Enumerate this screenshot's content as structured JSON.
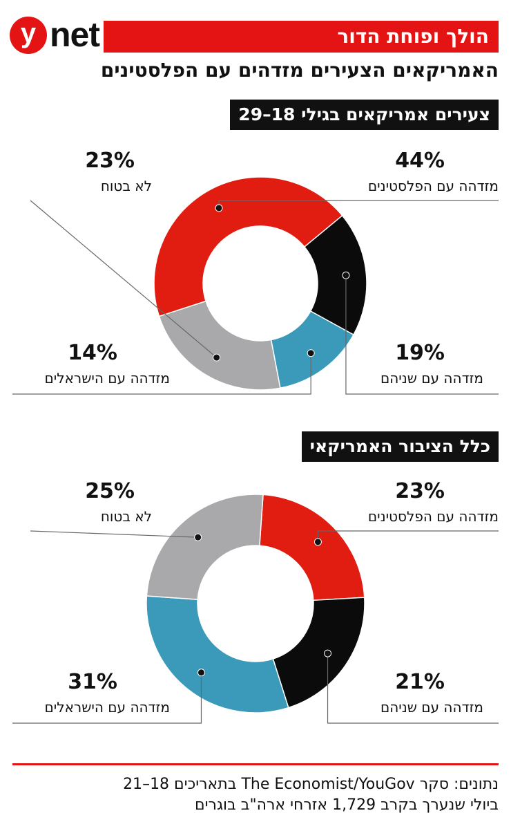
{
  "brand": {
    "logo_y": "y",
    "logo_word": "net"
  },
  "banner": {
    "title": "הולך ופוחת הדור"
  },
  "headline": "האמריקאים הצעירים מזדהים עם הפלסטינים",
  "sections": [
    {
      "label": "צעירים אמריקאים בגילי 18–29",
      "callouts": {
        "palestinians": {
          "pct": "44%",
          "text": "מזדהה עם הפלסטינים"
        },
        "both": {
          "pct": "19%",
          "text": "מזדהה עם שניהם"
        },
        "israelis": {
          "pct": "14%",
          "text": "מזדהה עם הישראלים"
        },
        "unsure": {
          "pct": "23%",
          "text": "לא בטוח"
        }
      }
    },
    {
      "label": "כלל הציבור האמריקאי",
      "callouts": {
        "palestinians": {
          "pct": "23%",
          "text": "מזדהה עם הפלסטינים"
        },
        "both": {
          "pct": "21%",
          "text": "מזדהה עם שניהם"
        },
        "israelis": {
          "pct": "31%",
          "text": "מזדהה עם הישראלים"
        },
        "unsure": {
          "pct": "25%",
          "text": "לא בטוח"
        }
      }
    }
  ],
  "chart_data": [
    {
      "type": "pie",
      "title": "צעירים אמריקאים בגילי 18–29",
      "categories": [
        "מזדהה עם הפלסטינים",
        "מזדהה עם שניהם",
        "מזדהה עם הישראלים",
        "לא בטוח"
      ],
      "values": [
        44,
        19,
        14,
        23
      ],
      "colors": [
        "#e01d10",
        "#0b0b0b",
        "#3b9ab9",
        "#a9a9ac"
      ],
      "donut": true
    },
    {
      "type": "pie",
      "title": "כלל הציבור האמריקאי",
      "categories": [
        "מזדהה עם הפלסטינים",
        "מזדהה עם שניהם",
        "מזדהה עם הישראלים",
        "לא בטוח"
      ],
      "values": [
        23,
        21,
        31,
        25
      ],
      "colors": [
        "#e01d10",
        "#0b0b0b",
        "#3b9ab9",
        "#a9a9ac"
      ],
      "donut": true
    }
  ],
  "footer": {
    "line1": "נתונים: סקר The Economist/YouGov בתאריכים 18–21",
    "line2": "ביולי שנערך בקרב 1,729 אזרחי ארה\"ב בוגרים"
  }
}
